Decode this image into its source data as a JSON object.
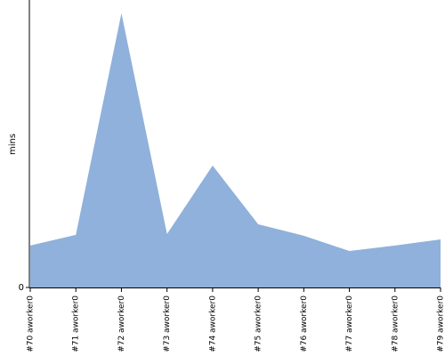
{
  "chart_data": {
    "type": "area",
    "y_label": "mins",
    "categories": [
      "#70 aworker0",
      "#71 aworker0",
      "#72 aworker0",
      "#73 aworker0",
      "#74 aworker0",
      "#75 aworker0",
      "#76 aworker0",
      "#77 aworker0",
      "#78 aworker0",
      "#79 aworker0"
    ],
    "values": [
      14.6,
      18.3,
      95.4,
      18.6,
      42.4,
      22.0,
      18.0,
      12.7,
      14.6,
      16.7
    ],
    "color": "#8fb1db",
    "ylim": [
      0,
      100
    ],
    "yticks": [
      0
    ]
  }
}
